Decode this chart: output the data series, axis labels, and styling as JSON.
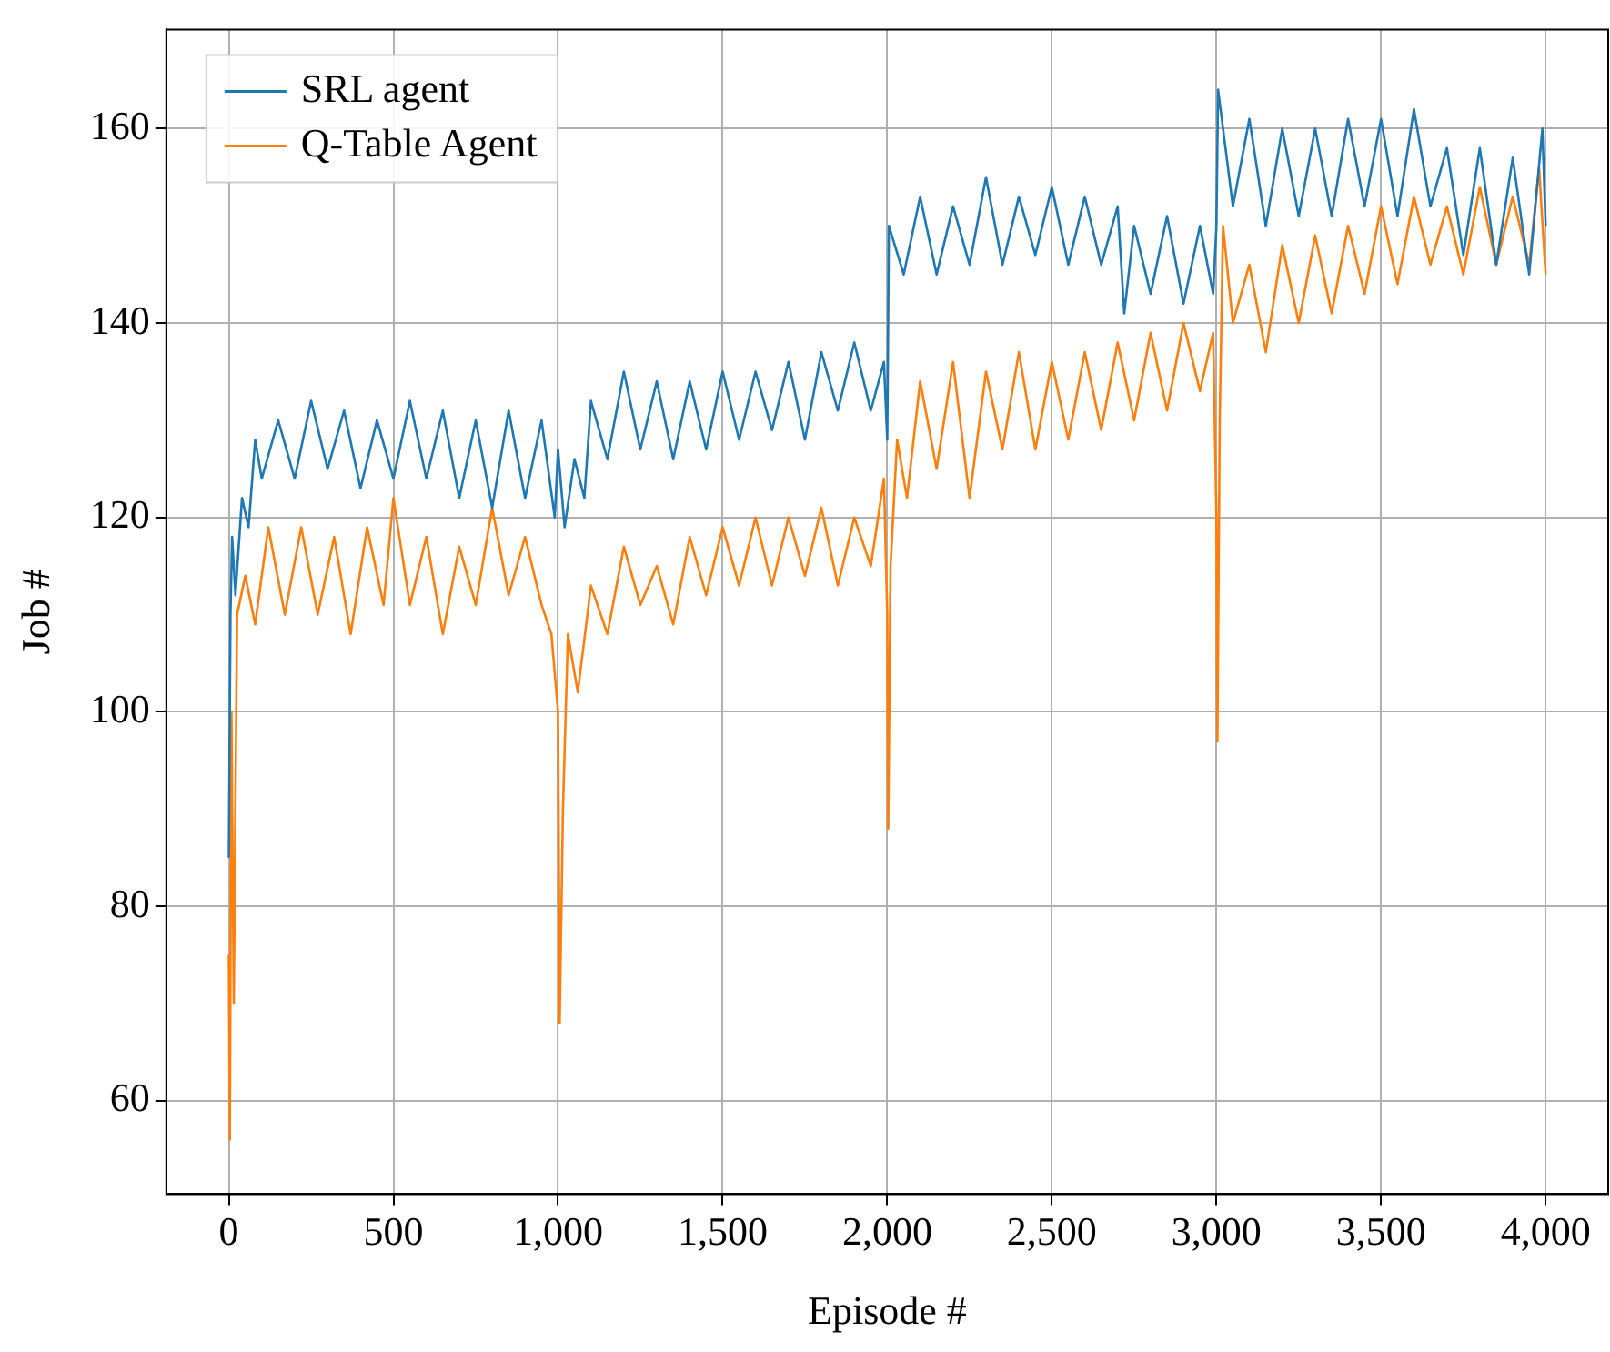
{
  "chart_data": {
    "type": "line",
    "xlabel": "Episode #",
    "ylabel": "Job #",
    "xlim": [
      -190,
      4190
    ],
    "ylim": [
      50.4,
      170.2
    ],
    "xticks": [
      0,
      500,
      {
        "value": 1000,
        "label": "1,000"
      },
      {
        "value": 1500,
        "label": "1,500"
      },
      {
        "value": 2000,
        "label": "2,000"
      },
      {
        "value": 2500,
        "label": "2,500"
      },
      {
        "value": 3000,
        "label": "3,000"
      },
      {
        "value": 3500,
        "label": "3,500"
      },
      {
        "value": 4000,
        "label": "4,000"
      }
    ],
    "yticks": [
      60,
      80,
      100,
      120,
      140,
      160
    ],
    "grid": true,
    "legend": "top left",
    "marker": "none",
    "line_style": "solid",
    "series": [
      {
        "name": "SRL agent",
        "color": "#1f77b4",
        "x": [
          0,
          5,
          10,
          20,
          40,
          60,
          80,
          100,
          150,
          200,
          250,
          300,
          350,
          400,
          450,
          500,
          550,
          600,
          650,
          700,
          750,
          800,
          850,
          900,
          950,
          990,
          1000,
          1020,
          1050,
          1080,
          1100,
          1150,
          1200,
          1250,
          1300,
          1350,
          1400,
          1450,
          1500,
          1550,
          1600,
          1650,
          1700,
          1750,
          1800,
          1850,
          1900,
          1950,
          1990,
          2000,
          2005,
          2050,
          2100,
          2150,
          2200,
          2250,
          2300,
          2350,
          2400,
          2450,
          2500,
          2550,
          2600,
          2650,
          2700,
          2720,
          2750,
          2800,
          2850,
          2900,
          2950,
          2990,
          3000,
          3005,
          3050,
          3100,
          3150,
          3200,
          3250,
          3300,
          3350,
          3400,
          3450,
          3500,
          3550,
          3600,
          3650,
          3700,
          3750,
          3800,
          3850,
          3900,
          3950,
          3990,
          4000
        ],
        "values": [
          85,
          110,
          118,
          112,
          122,
          119,
          128,
          124,
          130,
          124,
          132,
          125,
          131,
          123,
          130,
          124,
          132,
          124,
          131,
          122,
          130,
          121,
          131,
          122,
          130,
          120,
          127,
          119,
          126,
          122,
          132,
          126,
          135,
          127,
          134,
          126,
          134,
          127,
          135,
          128,
          135,
          129,
          136,
          128,
          137,
          131,
          138,
          131,
          136,
          128,
          150,
          145,
          153,
          145,
          152,
          146,
          155,
          146,
          153,
          147,
          154,
          146,
          153,
          146,
          152,
          141,
          150,
          143,
          151,
          142,
          150,
          143,
          150,
          164,
          152,
          161,
          150,
          160,
          151,
          160,
          151,
          161,
          152,
          161,
          151,
          162,
          152,
          158,
          147,
          158,
          146,
          157,
          145,
          160,
          150
        ]
      },
      {
        "name": "Q-Table Agent",
        "color": "#ff7f0e",
        "x": [
          0,
          3,
          8,
          15,
          25,
          50,
          80,
          120,
          170,
          220,
          270,
          320,
          370,
          420,
          470,
          500,
          550,
          600,
          650,
          700,
          750,
          800,
          850,
          900,
          950,
          980,
          1000,
          1005,
          1015,
          1030,
          1060,
          1100,
          1150,
          1200,
          1250,
          1300,
          1350,
          1400,
          1450,
          1500,
          1550,
          1600,
          1650,
          1700,
          1750,
          1800,
          1850,
          1900,
          1950,
          1990,
          2000,
          2003,
          2010,
          2030,
          2060,
          2100,
          2150,
          2200,
          2250,
          2300,
          2350,
          2400,
          2450,
          2500,
          2550,
          2600,
          2650,
          2700,
          2750,
          2800,
          2850,
          2900,
          2950,
          2990,
          3000,
          3003,
          3010,
          3020,
          3050,
          3100,
          3150,
          3200,
          3250,
          3300,
          3350,
          3400,
          3450,
          3500,
          3550,
          3600,
          3650,
          3700,
          3750,
          3800,
          3850,
          3900,
          3950,
          3980,
          4000
        ],
        "values": [
          75,
          56,
          100,
          70,
          110,
          114,
          109,
          119,
          110,
          119,
          110,
          118,
          108,
          119,
          111,
          122,
          111,
          118,
          108,
          117,
          111,
          121,
          112,
          118,
          111,
          108,
          100,
          68,
          90,
          108,
          102,
          113,
          108,
          117,
          111,
          115,
          109,
          118,
          112,
          119,
          113,
          120,
          113,
          120,
          114,
          121,
          113,
          120,
          115,
          124,
          110,
          88,
          115,
          128,
          122,
          134,
          125,
          136,
          122,
          135,
          127,
          137,
          127,
          136,
          128,
          137,
          129,
          138,
          130,
          139,
          131,
          140,
          133,
          139,
          120,
          97,
          130,
          150,
          140,
          146,
          137,
          148,
          140,
          149,
          141,
          150,
          143,
          152,
          144,
          153,
          146,
          152,
          145,
          154,
          146,
          153,
          146,
          156,
          145
        ]
      }
    ]
  }
}
